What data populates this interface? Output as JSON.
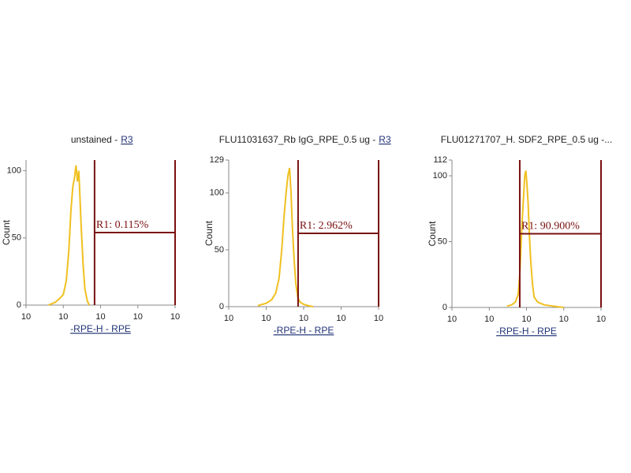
{
  "chart_data": [
    {
      "type": "histogram",
      "title": "unstained -",
      "title_link": "R3",
      "xlabel": "-RPE-H - RPE",
      "ylabel": "Count",
      "log_x": true,
      "xlim": [
        1,
        10000
      ],
      "xticks": [
        {
          "value": 1,
          "label": "10"
        },
        {
          "value": 10,
          "label": "10"
        },
        {
          "value": 100,
          "label": "10"
        },
        {
          "value": 1000,
          "label": "10"
        },
        {
          "value": 10000,
          "label": "10"
        }
      ],
      "ylim": [
        0,
        108
      ],
      "yticks": [
        0,
        50,
        100
      ],
      "color": "#f0c020",
      "x": [
        4,
        6,
        8,
        10,
        12,
        14,
        16,
        18,
        20,
        22,
        24,
        26,
        28,
        30,
        34,
        38,
        44,
        50
      ],
      "values": [
        0,
        2,
        5,
        8,
        18,
        40,
        70,
        88,
        95,
        104,
        92,
        100,
        80,
        60,
        30,
        12,
        3,
        0
      ],
      "gate": {
        "label": "R1: 0.115%",
        "range": [
          69,
          10000
        ]
      }
    },
    {
      "type": "histogram",
      "title": "FLU11031637_Rb IgG_RPE_0.5 ug -",
      "title_link": "R3",
      "xlabel": "-RPE-H - RPE",
      "ylabel": "Count",
      "log_x": true,
      "xlim": [
        1,
        10000
      ],
      "xticks": [
        {
          "value": 1,
          "label": "10"
        },
        {
          "value": 10,
          "label": "10"
        },
        {
          "value": 100,
          "label": "10"
        },
        {
          "value": 1000,
          "label": "10"
        },
        {
          "value": 10000,
          "label": "10"
        }
      ],
      "ylim": [
        0,
        129
      ],
      "yticks": [
        0,
        50,
        100,
        129
      ],
      "color": "#f0c020",
      "x": [
        6,
        10,
        14,
        18,
        22,
        26,
        30,
        34,
        38,
        42,
        46,
        50,
        56,
        62,
        70,
        80,
        100,
        130,
        180
      ],
      "values": [
        1,
        3,
        6,
        12,
        25,
        50,
        80,
        100,
        115,
        122,
        100,
        70,
        40,
        20,
        8,
        4,
        2,
        1,
        0
      ],
      "gate": {
        "label": "R1: 2.962%",
        "range": [
          71,
          10000
        ]
      }
    },
    {
      "type": "histogram",
      "title": "FLU01271707_H. SDF2_RPE_0.5 ug -...",
      "xlabel": "-RPE-H - RPE",
      "ylabel": "Count",
      "log_x": true,
      "xlim": [
        1,
        10000
      ],
      "xticks": [
        {
          "value": 1,
          "label": "10"
        },
        {
          "value": 10,
          "label": "10"
        },
        {
          "value": 100,
          "label": "10"
        },
        {
          "value": 1000,
          "label": "10"
        },
        {
          "value": 10000,
          "label": "10"
        }
      ],
      "ylim": [
        0,
        112
      ],
      "yticks": [
        0,
        50,
        100,
        112
      ],
      "color": "#f0c020",
      "x": [
        30,
        40,
        50,
        60,
        66,
        72,
        78,
        84,
        90,
        96,
        102,
        110,
        120,
        130,
        145,
        160,
        200,
        300,
        500,
        1000
      ],
      "values": [
        1,
        2,
        4,
        10,
        25,
        50,
        70,
        85,
        100,
        104,
        95,
        80,
        55,
        35,
        18,
        8,
        4,
        2,
        1,
        0
      ],
      "gate": {
        "label": "R1: 90.900%",
        "range": [
          66,
          10000
        ]
      }
    }
  ]
}
